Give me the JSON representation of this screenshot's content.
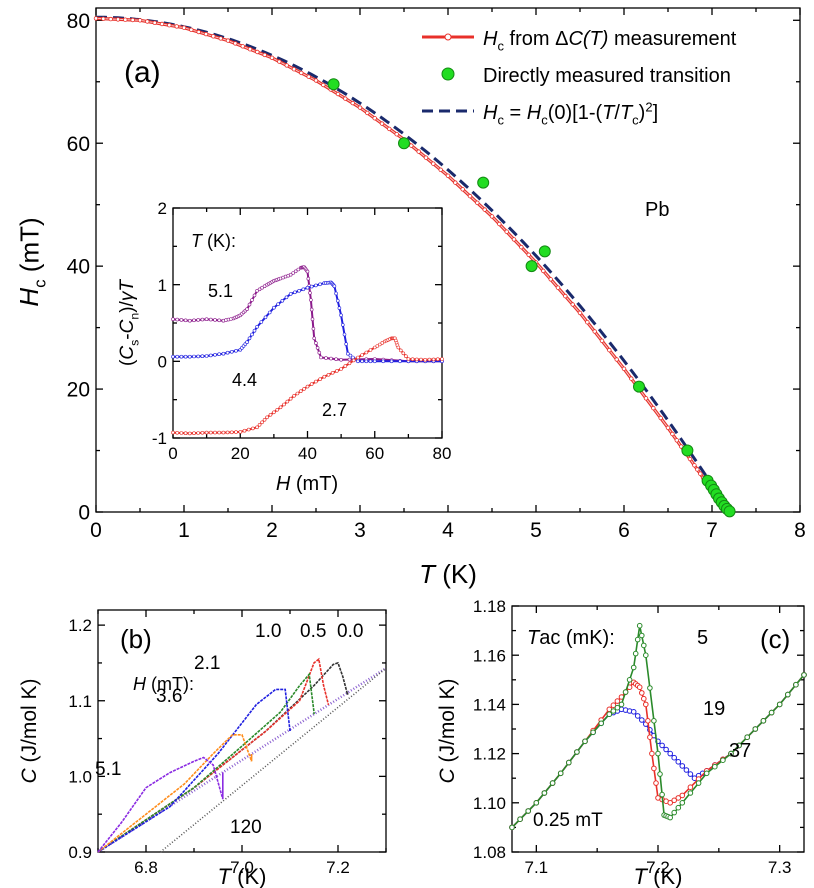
{
  "chart_data": [
    {
      "panel": "(a)",
      "type": "line",
      "material": "Pb",
      "xlabel": {
        "italic": "T",
        "rest": " (K)"
      },
      "ylabel": {
        "italic": "H",
        "sub": "c",
        "rest": " (mT)"
      },
      "xlim": [
        0,
        8
      ],
      "ylim": [
        0,
        82
      ],
      "xticks": [
        "0",
        "1",
        "2",
        "3",
        "4",
        "5",
        "6",
        "7",
        "8"
      ],
      "yticks": [
        "0",
        "20",
        "40",
        "60",
        "80"
      ],
      "legend": {
        "position": "top-right",
        "entries": [
          {
            "i": "H",
            "sub": "c",
            "rest": " from Δ",
            "i2": "C(T)",
            "rest2": " measurement"
          },
          {
            "rest": "Directly measured transition"
          },
          {
            "i": "H",
            "sub": "c",
            "rest": " = ",
            "i2": "H",
            "sub2": "c",
            "rest2": "(0)[1-(",
            "i3": "T",
            "rest3": "/",
            "i4": "T",
            "sub4": "c",
            "rest4": ")",
            "sup": "2",
            "rest5": "]"
          }
        ]
      },
      "colors": {
        "measured": "#e8302a",
        "direct": "#22dd22",
        "fit": "#1a2a6c"
      },
      "series": [
        {
          "style": "red-line-markers",
          "x": [
            0,
            0.5,
            1,
            1.5,
            2,
            2.5,
            3,
            3.5,
            4,
            4.5,
            5,
            5.5,
            6,
            6.5,
            6.8,
            7.0,
            7.1,
            7.18,
            7.2
          ],
          "y": [
            80.3,
            80.0,
            78.8,
            76.7,
            73.9,
            70.2,
            65.8,
            60.6,
            54.7,
            48.1,
            40.6,
            32.4,
            23.3,
            13.7,
            7.6,
            3.5,
            1.6,
            0.3,
            0
          ]
        },
        {
          "style": "green-points",
          "x": [
            2.7,
            3.5,
            4.4,
            4.95,
            5.1,
            6.17,
            6.72,
            6.95,
            6.99,
            7.02,
            7.05,
            7.08,
            7.11,
            7.14,
            7.17,
            7.2
          ],
          "y": [
            69.6,
            60,
            53.6,
            40,
            42.4,
            20.4,
            10,
            5.1,
            4.3,
            3.6,
            2.9,
            2.2,
            1.6,
            1.0,
            0.5,
            0.1
          ]
        },
        {
          "style": "dashed-fit",
          "Hc0": 80.5,
          "Tc": 7.2
        }
      ]
    },
    {
      "panel": "inset",
      "type": "line",
      "xlabel": {
        "italic": "H",
        "rest": " (mT)"
      },
      "ylabel": "(C_s-C_n)/γT",
      "xlim": [
        0,
        80
      ],
      "ylim": [
        -1,
        2
      ],
      "xticks": [
        "0",
        "20",
        "40",
        "60",
        "80"
      ],
      "yticks": [
        "-1",
        "0",
        "1",
        "2"
      ],
      "header": {
        "italic": "T",
        "rest": " (K):"
      },
      "series": [
        {
          "name": "5.1",
          "color": "#8b1a8b",
          "x": [
            0,
            5,
            10,
            15,
            18,
            20,
            22,
            25,
            28,
            30,
            32,
            35,
            38,
            39,
            40,
            41,
            42,
            44,
            50,
            60,
            70,
            80
          ],
          "y": [
            0.55,
            0.53,
            0.55,
            0.53,
            0.56,
            0.6,
            0.68,
            0.92,
            1.0,
            1.05,
            1.08,
            1.13,
            1.22,
            1.23,
            1.17,
            0.8,
            0.3,
            0.05,
            0.02,
            0.03,
            0.0,
            0.0
          ]
        },
        {
          "name": "4.4",
          "color": "#2020e0",
          "x": [
            0,
            5,
            10,
            15,
            20,
            22,
            25,
            30,
            35,
            40,
            45,
            47,
            48,
            50,
            52,
            55,
            60,
            70,
            80
          ],
          "y": [
            0.06,
            0.06,
            0.07,
            0.1,
            0.15,
            0.25,
            0.45,
            0.7,
            0.88,
            0.96,
            1.02,
            1.03,
            0.98,
            0.6,
            0.1,
            0.0,
            0.0,
            0.0,
            0.0
          ]
        },
        {
          "name": "2.7",
          "color": "#e8302a",
          "x": [
            0,
            5,
            10,
            15,
            20,
            25,
            28,
            32,
            36,
            40,
            45,
            50,
            55,
            60,
            63,
            65,
            66,
            67,
            70,
            75,
            80
          ],
          "y": [
            -0.93,
            -0.94,
            -0.93,
            -0.93,
            -0.92,
            -0.86,
            -0.73,
            -0.6,
            -0.45,
            -0.33,
            -0.2,
            -0.1,
            0.05,
            0.18,
            0.26,
            0.3,
            0.3,
            0.18,
            0.03,
            0.02,
            0.03
          ]
        }
      ]
    },
    {
      "panel": "(b)",
      "type": "line",
      "xlabel": {
        "italic": "T",
        "rest": " (K)"
      },
      "ylabel": {
        "italic": "C",
        "rest": " (J/mol K)"
      },
      "xlim": [
        6.7,
        7.3
      ],
      "ylim": [
        0.9,
        1.22
      ],
      "xticks": [
        "6.8",
        "7.0",
        "7.2"
      ],
      "yticks": [
        "0.9",
        "1.0",
        "1.1",
        "1.2"
      ],
      "header": {
        "italic": "H",
        "rest": " (mT):"
      },
      "normal_state_line": {
        "x": [
          6.7,
          7.3
        ],
        "y": [
          0.9,
          1.143
        ]
      },
      "series": [
        {
          "name": "0.0",
          "color": "#333333",
          "x": [
            6.7,
            6.9,
            7.05,
            7.15,
            7.19,
            7.2,
            7.21,
            7.22
          ],
          "y": [
            0.9,
            0.985,
            1.06,
            1.12,
            1.148,
            1.15,
            1.132,
            1.108
          ]
        },
        {
          "name": "0.5",
          "color": "#e8302a",
          "x": [
            6.7,
            6.9,
            7.05,
            7.12,
            7.15,
            7.16,
            7.17,
            7.18
          ],
          "y": [
            0.9,
            0.985,
            1.06,
            1.1,
            1.15,
            1.155,
            1.12,
            1.095
          ]
        },
        {
          "name": "1.0",
          "color": "#2a8a2a",
          "x": [
            6.7,
            6.9,
            7.0,
            7.08,
            7.12,
            7.14,
            7.15
          ],
          "y": [
            0.9,
            0.985,
            1.04,
            1.085,
            1.12,
            1.135,
            1.085
          ]
        },
        {
          "name": "2.1",
          "color": "#2020e0",
          "x": [
            6.7,
            6.85,
            6.95,
            7.03,
            7.07,
            7.09,
            7.1
          ],
          "y": [
            0.9,
            0.96,
            1.03,
            1.095,
            1.115,
            1.115,
            1.06
          ]
        },
        {
          "name": "3.6",
          "color": "#ff8c1a",
          "x": [
            6.7,
            6.8,
            6.88,
            6.94,
            6.98,
            7.0,
            7.02
          ],
          "y": [
            0.9,
            0.95,
            0.99,
            1.03,
            1.055,
            1.055,
            1.02
          ]
        },
        {
          "name": "5.1",
          "color": "#8a2be2",
          "x": [
            6.7,
            6.75,
            6.8,
            6.85,
            6.9,
            6.92,
            6.94,
            6.96
          ],
          "y": [
            0.9,
            0.94,
            0.985,
            1.005,
            1.02,
            1.025,
            1.015,
            0.97
          ]
        },
        {
          "name": "120",
          "color": "#555555",
          "x": [
            6.83,
            7.3
          ],
          "y": [
            0.9,
            1.143
          ]
        }
      ]
    },
    {
      "panel": "(c)",
      "type": "line",
      "xlabel": {
        "italic": "T",
        "rest": " (K)"
      },
      "ylabel": {
        "italic": "C",
        "rest": " (J/mol K)"
      },
      "xlim": [
        7.08,
        7.32
      ],
      "ylim": [
        1.08,
        1.18
      ],
      "xticks": [
        "7.1",
        "7.2",
        "7.3"
      ],
      "yticks": [
        "1.08",
        "1.10",
        "1.12",
        "1.14",
        "1.16",
        "1.18"
      ],
      "header": {
        "italic": "T",
        "rest": "ac (mK):"
      },
      "field_note": "0.25 mT",
      "series": [
        {
          "name": "37",
          "color": "#2020e0",
          "x": [
            7.08,
            7.1,
            7.12,
            7.14,
            7.16,
            7.17,
            7.18,
            7.19,
            7.2,
            7.21,
            7.22,
            7.23,
            7.24,
            7.26,
            7.28,
            7.3,
            7.32
          ],
          "y": [
            1.09,
            1.1,
            1.112,
            1.125,
            1.136,
            1.138,
            1.137,
            1.132,
            1.125,
            1.12,
            1.115,
            1.11,
            1.113,
            1.12,
            1.13,
            1.14,
            1.152
          ]
        },
        {
          "name": "19",
          "color": "#e8302a",
          "x": [
            7.08,
            7.1,
            7.12,
            7.14,
            7.16,
            7.17,
            7.18,
            7.185,
            7.19,
            7.195,
            7.2,
            7.21,
            7.22,
            7.24,
            7.26,
            7.28,
            7.3,
            7.32
          ],
          "y": [
            1.09,
            1.1,
            1.112,
            1.125,
            1.138,
            1.143,
            1.149,
            1.147,
            1.14,
            1.12,
            1.102,
            1.1,
            1.103,
            1.113,
            1.12,
            1.13,
            1.14,
            1.152
          ]
        },
        {
          "name": "5",
          "color": "#2a8a2a",
          "x": [
            7.08,
            7.1,
            7.12,
            7.14,
            7.16,
            7.17,
            7.18,
            7.185,
            7.19,
            7.2,
            7.205,
            7.21,
            7.22,
            7.24,
            7.26,
            7.28,
            7.3,
            7.32
          ],
          "y": [
            1.09,
            1.1,
            1.112,
            1.125,
            1.136,
            1.14,
            1.155,
            1.172,
            1.16,
            1.12,
            1.095,
            1.094,
            1.1,
            1.112,
            1.12,
            1.13,
            1.14,
            1.152
          ]
        }
      ]
    }
  ]
}
